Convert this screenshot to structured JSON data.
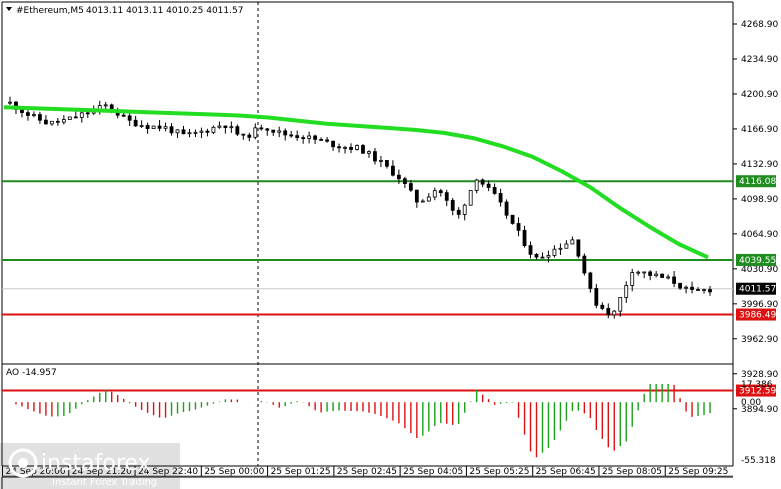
{
  "header": {
    "symbol": "#Ethereum,M5",
    "ohlc": "4013.11 4013.11 4010.25 4011.57",
    "dropdown_icon": "triangle-down-icon"
  },
  "oscillator": {
    "label": "AO -14.957",
    "ticks": [
      "17.386",
      "0.00",
      "-55.318"
    ]
  },
  "levels": [
    {
      "value": 4116.08,
      "label": "4116.08",
      "color": "#1e8c1e"
    },
    {
      "value": 4039.55,
      "label": "4039.55",
      "color": "#1e8c1e"
    },
    {
      "value": 3986.49,
      "label": "3986.49",
      "color": "#dd1111"
    },
    {
      "value": 3912.59,
      "label": "3912.59",
      "color": "#dd1111"
    }
  ],
  "current_price": {
    "value": 4011.57,
    "label": "4011.57"
  },
  "logo": {
    "brand": "instaforex",
    "tagline": "Instant Forex Trading"
  },
  "chart_data": {
    "type": "candlestick",
    "price_axis_ticks": [
      "4268.90",
      "4234.90",
      "4200.90",
      "4166.90",
      "4132.90",
      "4098.90",
      "4064.90",
      "4030.90",
      "3996.90",
      "3962.90",
      "3928.90",
      "3894.90"
    ],
    "ylim": [
      3890,
      4275
    ],
    "x_tick_labels": [
      "24 Sep 20:00",
      "24 Sep 21:20",
      "24 Sep 22:40",
      "25 Sep 00:00",
      "25 Sep 01:25",
      "25 Sep 02:45",
      "25 Sep 04:05",
      "25 Sep 05:25",
      "25 Sep 06:45",
      "25 Sep 08:05",
      "25 Sep 09:25"
    ],
    "moving_average": [
      4188,
      4187,
      4186,
      4185,
      4184,
      4183,
      4182,
      4181,
      4180,
      4178,
      4175,
      4172,
      4170,
      4168,
      4166,
      4163,
      4158,
      4150,
      4140,
      4126,
      4110,
      4090,
      4072,
      4055,
      4042
    ],
    "close_path": [
      4192,
      4180,
      4172,
      4176,
      4183,
      4190,
      4175,
      4170,
      4168,
      4160,
      4165,
      4172,
      4158,
      4170,
      4162,
      4160,
      4155,
      4150,
      4148,
      4135,
      4120,
      4095,
      4110,
      4080,
      4120,
      4100,
      4070,
      4040,
      4050,
      4060,
      4000,
      3985,
      4030,
      4025,
      4020,
      4008,
      4011
    ]
  }
}
